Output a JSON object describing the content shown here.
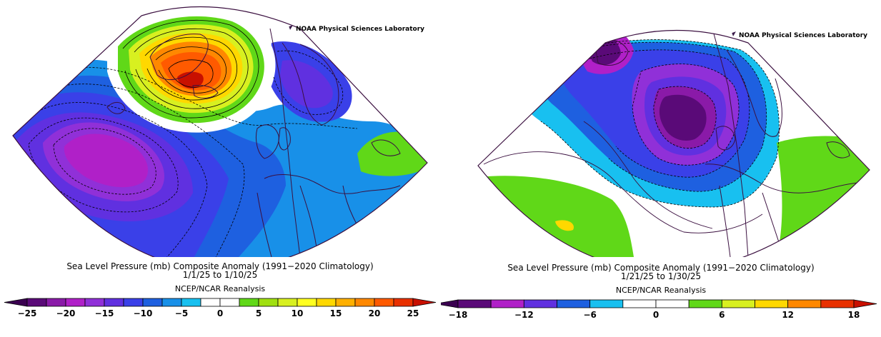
{
  "credit": "NOAA Physical Sciences Laboratory",
  "panels": [
    {
      "title": "Sea Level Pressure (mb) Composite Anomaly (1991−2020 Climatology)",
      "dates": "1/1/25   to 1/10/25",
      "source": "NCEP/NCAR Reanalysis",
      "colorbar": {
        "min": -25,
        "max": 25,
        "step": 2.5,
        "tick_labels": [
          "−25",
          "−20",
          "−15",
          "−10",
          "−5",
          "0",
          "5",
          "10",
          "15",
          "20",
          "25"
        ],
        "colors": [
          "#5a0a78",
          "#8a1aa8",
          "#b020c8",
          "#9030d8",
          "#6030e0",
          "#3a40e8",
          "#1e60e0",
          "#1890e8",
          "#18c0f0",
          "#ffffff",
          "#ffffff",
          "#60d818",
          "#a0e010",
          "#d8f020",
          "#ffff20",
          "#ffd800",
          "#ffb000",
          "#ff8800",
          "#ff5a00",
          "#e83000"
        ],
        "arrow_left": "#3a0050",
        "arrow_right": "#c81000"
      }
    },
    {
      "title": "Sea Level Pressure (mb) Composite Anomaly (1991−2020 Climatology)",
      "dates": "1/21/25   to 1/30/25",
      "source": "NCEP/NCAR Reanalysis",
      "colorbar": {
        "min": -18,
        "max": 18,
        "step": 3,
        "tick_labels": [
          "−18",
          "−12",
          "−6",
          "0",
          "6",
          "12",
          "18"
        ],
        "colors": [
          "#5a0a78",
          "#b020c8",
          "#6030e0",
          "#1e60e0",
          "#18c0f0",
          "#ffffff",
          "#ffffff",
          "#60d818",
          "#d8f020",
          "#ffd800",
          "#ff8800",
          "#e83000"
        ],
        "arrow_left": "#3a0050",
        "arrow_right": "#c81000"
      }
    }
  ]
}
